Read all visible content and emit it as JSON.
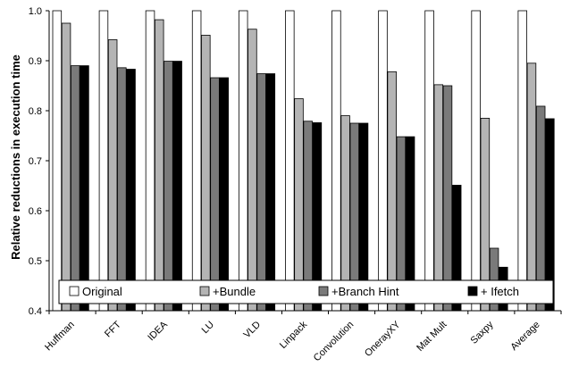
{
  "chart_data": {
    "type": "bar",
    "title": "",
    "xlabel": "",
    "ylabel": "Relative reductions in execution time",
    "ylim": [
      0.4,
      1.0
    ],
    "yticks": [
      "0.4",
      "0.5",
      "0.6",
      "0.7",
      "0.8",
      "0.9",
      "1.0"
    ],
    "grid": false,
    "legend_position": "bottom (inside plot)",
    "categories": [
      "Huffman",
      "FFT",
      "IDEA",
      "LU",
      "VLD",
      "Linpack",
      "Convolution",
      "OnerayXY",
      "Mat Mult",
      "Saxpy",
      "Average"
    ],
    "series": [
      {
        "name": "Original",
        "color": "#ffffff",
        "values": [
          1.0,
          1.0,
          1.0,
          1.0,
          1.0,
          1.0,
          1.0,
          1.0,
          1.0,
          1.0,
          1.0
        ]
      },
      {
        "name": "+Bundle",
        "color": "#b4b4b4",
        "values": [
          0.975,
          0.942,
          0.982,
          0.951,
          0.963,
          0.824,
          0.79,
          0.878,
          0.852,
          0.785,
          0.895
        ]
      },
      {
        "name": "+Branch Hint",
        "color": "#7a7a7a",
        "values": [
          0.89,
          0.886,
          0.899,
          0.866,
          0.874,
          0.779,
          0.775,
          0.748,
          0.85,
          0.525,
          0.809
        ]
      },
      {
        "name": "+ Ifetch",
        "color": "#000000",
        "values": [
          0.89,
          0.883,
          0.899,
          0.866,
          0.874,
          0.776,
          0.775,
          0.748,
          0.651,
          0.487,
          0.784
        ]
      }
    ]
  }
}
